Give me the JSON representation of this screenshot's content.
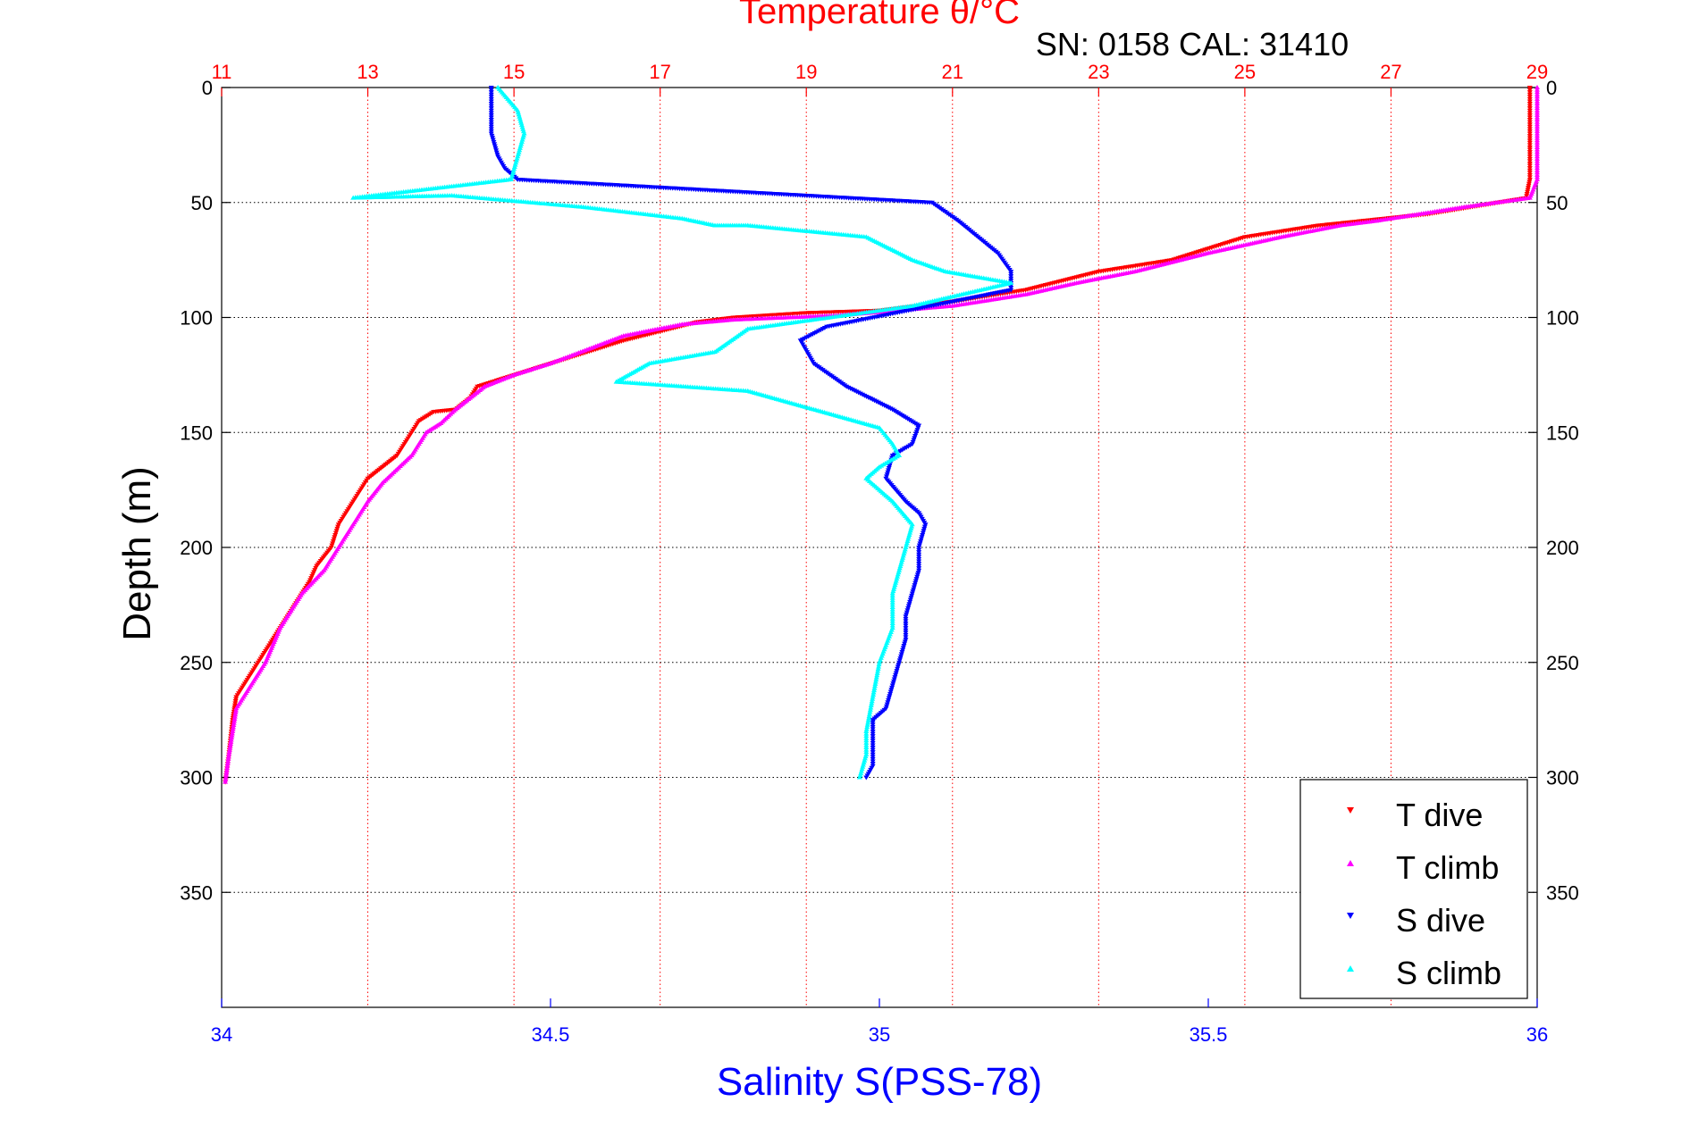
{
  "chart_data": {
    "type": "scatter",
    "title": "Temperature θ/°C",
    "annotation": "SN: 0158  CAL: 31410",
    "xlabel": "Salinity S(PSS-78)",
    "ylabel": "Depth (m)",
    "temperature_axis": {
      "label": "Temperature θ/°C",
      "range": [
        11,
        29
      ],
      "ticks": [
        "11",
        "13",
        "15",
        "17",
        "19",
        "21",
        "23",
        "25",
        "27",
        "29"
      ],
      "color": "#ff0000",
      "position": "top"
    },
    "salinity_axis": {
      "label": "Salinity S(PSS-78)",
      "range": [
        34,
        36
      ],
      "ticks": [
        "34",
        "34.5",
        "35",
        "35.5",
        "36"
      ],
      "color": "#0000ff",
      "position": "bottom"
    },
    "depth_axis": {
      "label": "Depth (m)",
      "range": [
        0,
        400
      ],
      "inverted": true,
      "ticks": [
        "0",
        "50",
        "100",
        "150",
        "200",
        "250",
        "300",
        "350"
      ]
    },
    "grid": true,
    "legend": {
      "placement": "bottom-right",
      "entries": [
        {
          "label": "T dive",
          "color": "#ff0000",
          "marker": "triangle-down"
        },
        {
          "label": "T climb",
          "color": "#ff00ff",
          "marker": "triangle-up"
        },
        {
          "label": "S dive",
          "color": "#0000ff",
          "marker": "triangle-down"
        },
        {
          "label": "S climb",
          "color": "#00ffff",
          "marker": "triangle-up"
        }
      ]
    },
    "series": [
      {
        "name": "T dive",
        "axis": "temperature",
        "color": "#ff0000",
        "marker": "triangle-down",
        "x": [
          28.9,
          28.9,
          28.9,
          28.9,
          28.9,
          28.85,
          27.5,
          26.0,
          25.0,
          24.0,
          23.0,
          22.0,
          21.0,
          20.0,
          19.0,
          18.0,
          17.5,
          17.0,
          16.5,
          16.0,
          15.5,
          15.0,
          14.5,
          14.4,
          14.2,
          13.9,
          13.7,
          13.6,
          13.5,
          13.4,
          13.2,
          13.0,
          12.9,
          12.8,
          12.6,
          12.5,
          12.3,
          12.2,
          12.0,
          11.8,
          11.6,
          11.4,
          11.2,
          11.15,
          11.1,
          11.05
        ],
        "y": [
          0,
          10,
          20,
          30,
          40,
          48,
          55,
          60,
          65,
          75,
          80,
          88,
          93,
          97,
          98,
          100,
          102,
          106,
          110,
          115,
          120,
          125,
          130,
          135,
          140,
          141,
          145,
          150,
          155,
          160,
          165,
          170,
          175,
          180,
          190,
          200,
          208,
          215,
          225,
          235,
          245,
          255,
          265,
          275,
          290,
          302
        ]
      },
      {
        "name": "T climb",
        "axis": "temperature",
        "color": "#ff00ff",
        "marker": "triangle-up",
        "x": [
          29.0,
          29.0,
          29.0,
          29.0,
          29.0,
          28.9,
          28.0,
          26.8,
          26.3,
          25.5,
          24.5,
          23.5,
          22.7,
          22.0,
          21.0,
          19.5,
          18.0,
          17.3,
          16.5,
          16.0,
          15.5,
          15.0,
          14.6,
          14.4,
          14.2,
          14.0,
          13.8,
          13.7,
          13.6,
          13.4,
          13.2,
          13.0,
          12.8,
          12.6,
          12.4,
          12.1,
          11.8,
          11.6,
          11.4,
          11.2,
          11.15,
          11.1,
          11.05
        ],
        "y": [
          0,
          10,
          20,
          30,
          40,
          48,
          52,
          58,
          60,
          65,
          72,
          80,
          85,
          90,
          95,
          99,
          101,
          103,
          108,
          114,
          120,
          125,
          130,
          135,
          140,
          146,
          150,
          155,
          160,
          166,
          172,
          180,
          190,
          200,
          210,
          220,
          235,
          250,
          260,
          270,
          280,
          290,
          302
        ]
      },
      {
        "name": "S dive",
        "axis": "salinity",
        "color": "#0000ff",
        "marker": "triangle-down",
        "x": [
          34.41,
          34.41,
          34.41,
          34.42,
          34.43,
          34.45,
          35.08,
          35.12,
          35.15,
          35.18,
          35.2,
          35.2,
          34.92,
          34.88,
          34.9,
          34.95,
          35.02,
          35.06,
          35.05,
          35.02,
          35.01,
          35.04,
          35.06,
          35.07,
          35.06,
          35.06,
          35.05,
          35.04,
          35.04,
          35.03,
          35.02,
          35.01,
          34.99,
          34.99,
          34.99,
          34.98
        ],
        "y": [
          0,
          10,
          20,
          30,
          35,
          40,
          50,
          58,
          65,
          72,
          80,
          88,
          104,
          110,
          120,
          130,
          140,
          147,
          155,
          160,
          170,
          180,
          185,
          190,
          200,
          210,
          220,
          230,
          240,
          250,
          260,
          270,
          275,
          285,
          295,
          300
        ]
      },
      {
        "name": "S climb",
        "axis": "salinity",
        "color": "#00ffff",
        "marker": "triangle-up",
        "x": [
          34.42,
          34.45,
          34.46,
          34.45,
          34.44,
          34.2,
          34.35,
          34.55,
          34.7,
          34.75,
          34.8,
          34.98,
          35.05,
          35.1,
          35.2,
          35.05,
          34.8,
          34.75,
          34.65,
          34.6,
          34.8,
          34.9,
          35.0,
          35.02,
          35.03,
          35.0,
          34.98,
          35.02,
          35.05,
          35.04,
          35.03,
          35.02,
          35.02,
          35.0,
          34.99,
          34.98,
          34.98,
          34.97
        ],
        "y": [
          0,
          10,
          20,
          30,
          40,
          48,
          47,
          52,
          57,
          60,
          60,
          65,
          75,
          80,
          85,
          95,
          105,
          115,
          120,
          128,
          132,
          140,
          148,
          155,
          160,
          165,
          170,
          180,
          190,
          200,
          210,
          220,
          235,
          250,
          265,
          280,
          290,
          300
        ]
      }
    ]
  }
}
